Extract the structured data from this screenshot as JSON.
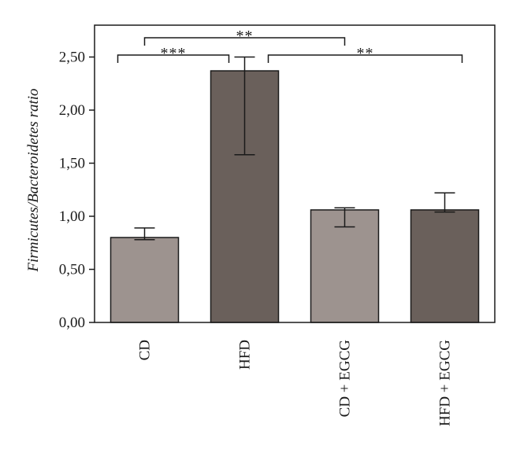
{
  "chart_data": {
    "type": "bar",
    "title": "",
    "xlabel": "",
    "ylabel": "Firmicutes/Bacteroidetes ratio",
    "ylim": [
      0,
      2.8
    ],
    "yticks": [
      {
        "value": 0,
        "label": "0,00"
      },
      {
        "value": 0.5,
        "label": "0,50"
      },
      {
        "value": 1.0,
        "label": "1,00"
      },
      {
        "value": 1.5,
        "label": "1,50"
      },
      {
        "value": 2.0,
        "label": "2,00"
      },
      {
        "value": 2.5,
        "label": "2,50"
      }
    ],
    "categories": [
      "CD",
      "HFD",
      "CD + EGCG",
      "HFD + EGCG"
    ],
    "values": [
      0.8,
      2.37,
      1.06,
      1.06
    ],
    "error_low": [
      0.78,
      1.58,
      0.9,
      1.04
    ],
    "error_high": [
      0.89,
      2.5,
      1.08,
      1.22
    ],
    "colors": [
      "#9d938f",
      "#6a605b",
      "#9d938f",
      "#6a605b"
    ],
    "grid": false,
    "significance": [
      {
        "from": 0,
        "to": 1,
        "label": "***",
        "level": 1
      },
      {
        "from": 0,
        "to": 2,
        "label": "**",
        "level": 2
      },
      {
        "from": 1,
        "to": 3,
        "label": "**",
        "level": 1
      }
    ]
  }
}
